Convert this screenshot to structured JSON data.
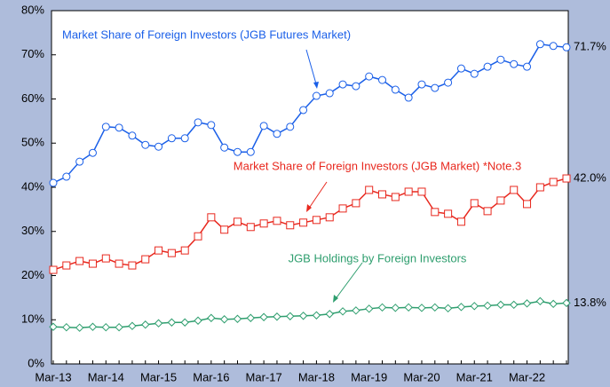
{
  "chart_data": {
    "type": "line",
    "categories": [
      "Mar-13",
      null,
      null,
      null,
      "Mar-14",
      null,
      null,
      null,
      "Mar-15",
      null,
      null,
      null,
      "Mar-16",
      null,
      null,
      null,
      "Mar-17",
      null,
      null,
      null,
      "Mar-18",
      null,
      null,
      null,
      "Mar-19",
      null,
      null,
      null,
      "Mar-20",
      null,
      null,
      null,
      "Mar-21",
      null,
      null,
      null,
      "Mar-22",
      null,
      null,
      null
    ],
    "ylim": [
      0,
      80
    ],
    "yticks": [
      {
        "value": 0,
        "label": "0%"
      },
      {
        "value": 10,
        "label": "10%"
      },
      {
        "value": 20,
        "label": "20%"
      },
      {
        "value": 30,
        "label": "30%"
      },
      {
        "value": 40,
        "label": "40%"
      },
      {
        "value": 50,
        "label": "50%"
      },
      {
        "value": 60,
        "label": "60%"
      },
      {
        "value": 70,
        "label": "70%"
      },
      {
        "value": 80,
        "label": "80%"
      }
    ],
    "series": [
      {
        "name": "Market Share of Foreign Investors (JGB Futures Market)",
        "color": "#1a5fe8",
        "marker": "circle",
        "values": [
          41.0,
          42.4,
          45.8,
          47.8,
          53.7,
          53.5,
          51.7,
          49.6,
          49.2,
          51.1,
          51.1,
          54.7,
          54.1,
          49.0,
          48.0,
          48.0,
          53.9,
          52.1,
          53.7,
          57.5,
          60.7,
          61.3,
          63.3,
          62.9,
          65.1,
          64.3,
          62.1,
          60.3,
          63.3,
          62.5,
          63.7,
          66.9,
          65.7,
          67.3,
          68.9,
          67.9,
          67.3,
          72.4,
          72.0,
          71.7
        ],
        "value_labels": [
          null,
          null,
          null,
          null,
          null,
          null,
          null,
          null,
          null,
          null,
          null,
          null,
          null,
          null,
          null,
          null,
          null,
          null,
          null,
          null,
          null,
          null,
          null,
          null,
          null,
          null,
          null,
          null,
          null,
          null,
          null,
          null,
          null,
          null,
          null,
          null,
          null,
          null,
          null,
          "71.7%"
        ]
      },
      {
        "name": "Market Share of Foreign Investors (JGB Market) *Note.3",
        "color": "#e8281e",
        "marker": "square",
        "values": [
          21.3,
          22.3,
          23.3,
          22.7,
          23.9,
          22.7,
          22.3,
          23.7,
          25.7,
          25.1,
          25.7,
          28.9,
          33.2,
          30.4,
          32.2,
          31.0,
          31.8,
          32.4,
          31.4,
          32.0,
          32.6,
          33.2,
          35.2,
          36.4,
          39.4,
          38.4,
          37.8,
          39.0,
          39.0,
          34.4,
          34.0,
          32.2,
          36.4,
          34.6,
          37.0,
          39.4,
          36.2,
          40.0,
          41.2,
          42.0
        ],
        "value_labels": [
          null,
          null,
          null,
          null,
          null,
          null,
          null,
          null,
          null,
          null,
          null,
          null,
          null,
          null,
          null,
          null,
          null,
          null,
          null,
          null,
          null,
          null,
          null,
          null,
          null,
          null,
          null,
          null,
          null,
          null,
          null,
          null,
          null,
          null,
          null,
          null,
          null,
          null,
          null,
          "42.0%"
        ]
      },
      {
        "name": "JGB Holdings by Foreign Investors",
        "color": "#2e9e6e",
        "marker": "diamond",
        "values": [
          8.4,
          8.3,
          8.2,
          8.4,
          8.3,
          8.3,
          8.6,
          8.9,
          9.2,
          9.4,
          9.4,
          9.8,
          10.4,
          10.1,
          10.2,
          10.4,
          10.6,
          10.7,
          10.8,
          10.9,
          11.0,
          11.3,
          11.9,
          12.1,
          12.5,
          12.8,
          12.7,
          12.8,
          12.7,
          12.8,
          12.6,
          12.9,
          13.1,
          13.2,
          13.4,
          13.4,
          13.7,
          14.2,
          13.6,
          13.8
        ],
        "value_labels": [
          null,
          null,
          null,
          null,
          null,
          null,
          null,
          null,
          null,
          null,
          null,
          null,
          null,
          null,
          null,
          null,
          null,
          null,
          null,
          null,
          null,
          null,
          null,
          null,
          null,
          null,
          null,
          null,
          null,
          null,
          null,
          null,
          null,
          null,
          null,
          null,
          null,
          null,
          null,
          "13.8%"
        ]
      }
    ]
  }
}
